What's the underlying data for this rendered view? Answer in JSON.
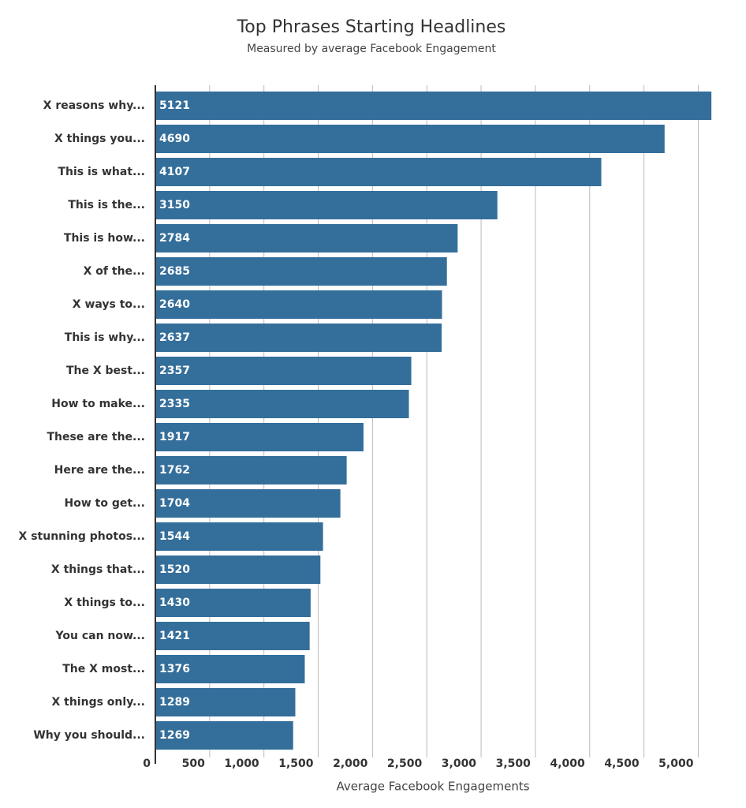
{
  "chart_data": {
    "type": "bar",
    "orientation": "horizontal",
    "title": "Top Phrases Starting Headlines",
    "subtitle": "Measured by average Facebook Engagement",
    "x_label": "Average Facebook Engagements",
    "categories": [
      "X reasons why...",
      "X things you...",
      "This is what...",
      "This is the...",
      "This is how...",
      "X of the...",
      "X ways to...",
      "This is why...",
      "The X best...",
      "How to make...",
      "These are the...",
      "Here are the...",
      "How to get...",
      "X stunning photos...",
      "X things that...",
      "X things to...",
      "You can now...",
      "The X most...",
      "X things only...",
      "Why you should..."
    ],
    "values": [
      5121,
      4690,
      4107,
      3150,
      2784,
      2685,
      2640,
      2637,
      2357,
      2335,
      1917,
      1762,
      1704,
      1544,
      1520,
      1430,
      1421,
      1376,
      1289,
      1269
    ],
    "color": "#346e9a",
    "xlim": [
      0,
      5200
    ],
    "xticks": [
      0,
      500,
      {
        "value": 1000,
        "label": "1,000"
      },
      {
        "value": 1500,
        "label": "1,500"
      },
      {
        "value": 2000,
        "label": "2,000"
      },
      {
        "value": 2500,
        "label": "2,500"
      },
      {
        "value": 3000,
        "label": "3,000"
      },
      {
        "value": 3500,
        "label": "3,500"
      },
      {
        "value": 4000,
        "label": "4,000"
      },
      {
        "value": 4500,
        "label": "4,500"
      },
      {
        "value": 5000,
        "label": "5,000"
      }
    ],
    "grid": true
  }
}
